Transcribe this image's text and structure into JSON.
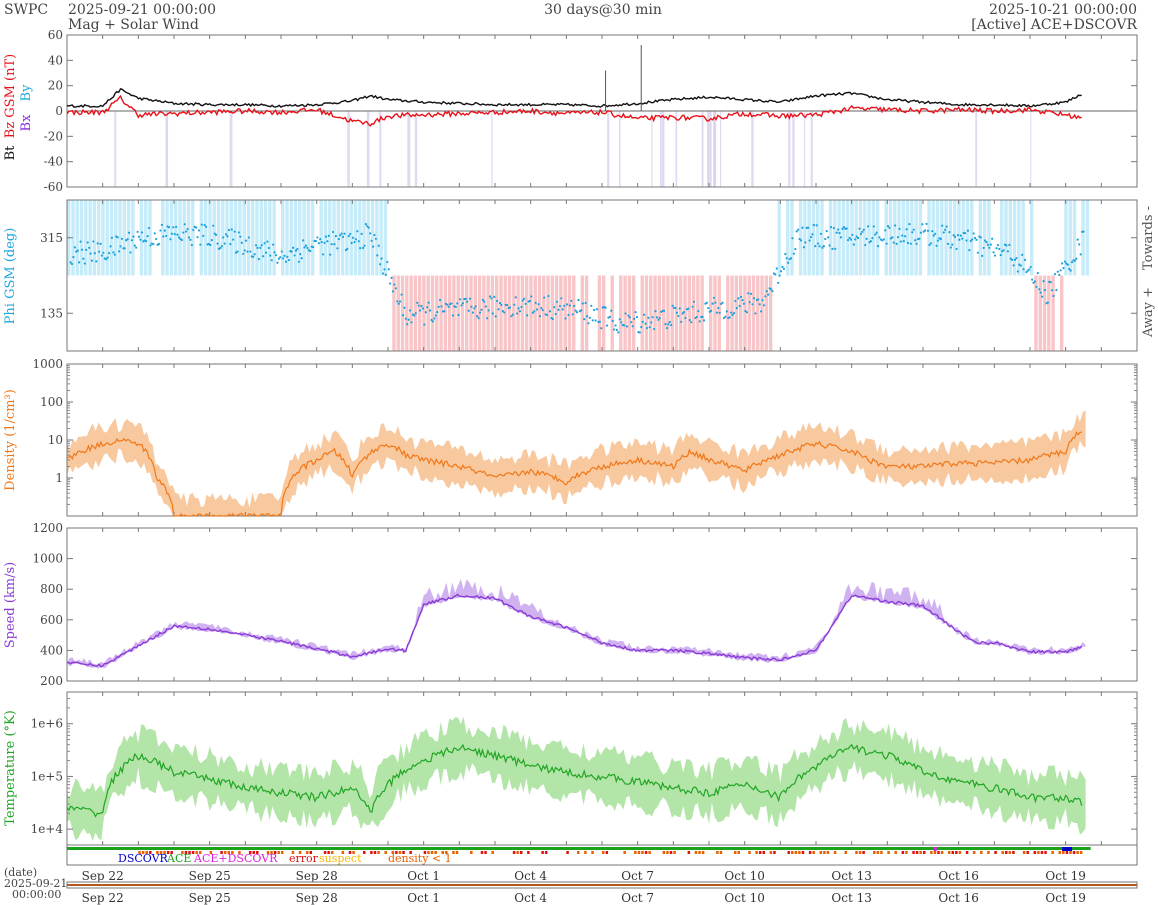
{
  "header": {
    "org": "SWPC",
    "start": "2025-09-21 00:00:00",
    "subtitle": "Mag + Solar Wind",
    "center": "30 days@30 min",
    "end": "2025-10-21 00:00:00",
    "source": "[Active] ACE+DSCOVR"
  },
  "colors": {
    "bt": "#111111",
    "bz": "#e8121a",
    "bx": "#8a2be2",
    "by": "#1fa7e0",
    "phi_points": "#1ea0dc",
    "towards_fill": "#c6ecfa",
    "away_fill": "#f8c6c8",
    "density": "#f07818",
    "density_band": "#f7be8e",
    "speed": "#8a3bd6",
    "speed_band": "#c9a4ee",
    "temperature": "#22a524",
    "temperature_band": "#a6e09a",
    "bz_south": "#d9d0ee",
    "dscovr": "#0000cc",
    "ace": "#1aa31a",
    "combined": "#e020e0",
    "error": "#dd1111",
    "suspect": "#f0b800",
    "density_lt_1": "#e86000"
  },
  "time_labels": [
    "Sep 22",
    "Sep 25",
    "Sep 28",
    "Oct 1",
    "Oct 4",
    "Oct 7",
    "Oct 10",
    "Oct 13",
    "Oct 16",
    "Oct 19"
  ],
  "date_label": "(date)",
  "date_sub": [
    "2025-09-21",
    "00:00:00"
  ],
  "quality_legend": [
    "DSCOVR",
    "ACE",
    "ACE+DSCOVR",
    "error",
    "suspect",
    "density < 1"
  ],
  "chart_data": [
    {
      "type": "line",
      "panel": "mag",
      "ylabel_parts": [
        "Bt",
        "Bz GSM (nT)",
        "Bx",
        "By"
      ],
      "ylim": [
        -60,
        60
      ],
      "yticks": [
        60,
        40,
        20,
        0,
        -20,
        -40,
        -60
      ],
      "x_days": [
        1,
        1.5,
        2,
        3,
        4,
        5,
        6,
        7,
        8,
        8.5,
        9,
        10,
        11,
        12,
        13,
        14,
        15,
        16,
        17,
        18,
        19,
        20,
        21,
        22,
        23,
        24,
        25,
        26,
        27,
        28,
        28.5
      ],
      "series": [
        {
          "name": "Bt",
          "values": [
            4,
            17,
            10,
            6,
            5,
            5,
            4,
            5,
            8,
            12,
            9,
            7,
            6,
            5,
            5,
            5,
            4,
            6,
            9,
            11,
            9,
            7,
            12,
            14,
            9,
            7,
            5,
            5,
            4,
            7,
            14
          ]
        },
        {
          "name": "Bz",
          "values": [
            -1,
            10,
            -3,
            -2,
            -1,
            0,
            -1,
            1,
            -8,
            -10,
            -4,
            -3,
            -2,
            -1,
            0,
            -2,
            -1,
            -6,
            -5,
            -6,
            -2,
            -4,
            -3,
            2,
            1,
            0,
            1,
            0,
            1,
            -3,
            -6
          ]
        }
      ]
    },
    {
      "type": "scatter",
      "panel": "phi",
      "ylabel": "Phi GSM (deg)",
      "ylim": [
        45,
        405
      ],
      "yticks": [
        315,
        135
      ],
      "right_labels": [
        "Towards -",
        "Away +"
      ],
      "x_days": [
        1,
        2,
        3,
        4,
        5,
        6,
        7,
        8,
        8.5,
        9.5,
        10.5,
        11.5,
        12.5,
        13.5,
        14.5,
        15.5,
        16.5,
        17.5,
        18.5,
        19.5,
        20.5,
        21.5,
        22.5,
        23.5,
        24.5,
        25.5,
        26.5,
        27.5,
        28.5
      ],
      "values": [
        280,
        315,
        325,
        320,
        300,
        270,
        300,
        305,
        325,
        130,
        140,
        145,
        155,
        150,
        140,
        110,
        120,
        135,
        150,
        160,
        320,
        315,
        320,
        325,
        320,
        300,
        275,
        180,
        310
      ]
    },
    {
      "type": "area",
      "panel": "density",
      "ylabel": "Density (1/cm³)",
      "scale": "log",
      "ylim": [
        0.1,
        1000
      ],
      "yticks": [
        1000,
        100,
        10,
        1
      ],
      "x_days": [
        0,
        1,
        1.5,
        2,
        2.5,
        3,
        4,
        5,
        6,
        7,
        7.5,
        8,
        9,
        9.5,
        10,
        11,
        12,
        13,
        14,
        15,
        16,
        17,
        17.5,
        18,
        19,
        20,
        21,
        22,
        22.5,
        23,
        24,
        25,
        26,
        27,
        28,
        28.5
      ],
      "values": [
        3,
        8,
        10,
        8,
        1,
        0.1,
        0.1,
        0.1,
        0.1,
        3,
        5,
        1,
        8,
        4,
        3,
        2,
        1,
        1.5,
        0.8,
        2,
        3,
        2,
        5,
        3,
        1.5,
        4,
        8,
        5,
        3,
        2,
        2,
        2.5,
        2.5,
        3,
        5,
        20
      ]
    },
    {
      "type": "line",
      "panel": "speed",
      "ylabel": "Speed (km/s)",
      "ylim": [
        200,
        1200
      ],
      "yticks": [
        1200,
        1000,
        800,
        600,
        400,
        200
      ],
      "x_days": [
        0,
        1,
        2,
        3,
        4,
        5,
        6,
        7,
        8,
        9,
        9.5,
        10,
        11,
        12,
        13,
        14,
        15,
        16,
        17,
        18,
        19,
        20,
        21,
        22,
        23,
        24,
        25,
        25.5,
        26,
        27,
        28,
        28.5
      ],
      "values": [
        320,
        300,
        430,
        560,
        540,
        500,
        460,
        410,
        360,
        410,
        400,
        700,
        760,
        740,
        620,
        550,
        450,
        400,
        400,
        380,
        350,
        340,
        400,
        760,
        720,
        690,
        520,
        450,
        450,
        390,
        390,
        430
      ]
    },
    {
      "type": "line",
      "panel": "temperature",
      "ylabel": "Temperature (°K)",
      "scale": "log",
      "ylim": [
        5000,
        4000000
      ],
      "yticks": [
        "1e+6",
        "1e+5",
        "1e+4"
      ],
      "x_days": [
        0,
        1,
        2,
        3,
        4,
        5,
        6,
        7,
        8,
        8.5,
        9,
        10,
        11,
        12,
        13,
        14,
        15,
        16,
        17,
        18,
        19,
        20,
        21,
        22,
        23,
        24,
        25,
        26,
        27,
        28,
        28.5
      ],
      "values": [
        25000,
        20000,
        250000,
        120000,
        90000,
        60000,
        50000,
        40000,
        60000,
        20000,
        70000,
        200000,
        350000,
        250000,
        160000,
        120000,
        100000,
        80000,
        60000,
        50000,
        70000,
        40000,
        150000,
        350000,
        250000,
        120000,
        80000,
        60000,
        40000,
        40000,
        30000
      ]
    }
  ]
}
